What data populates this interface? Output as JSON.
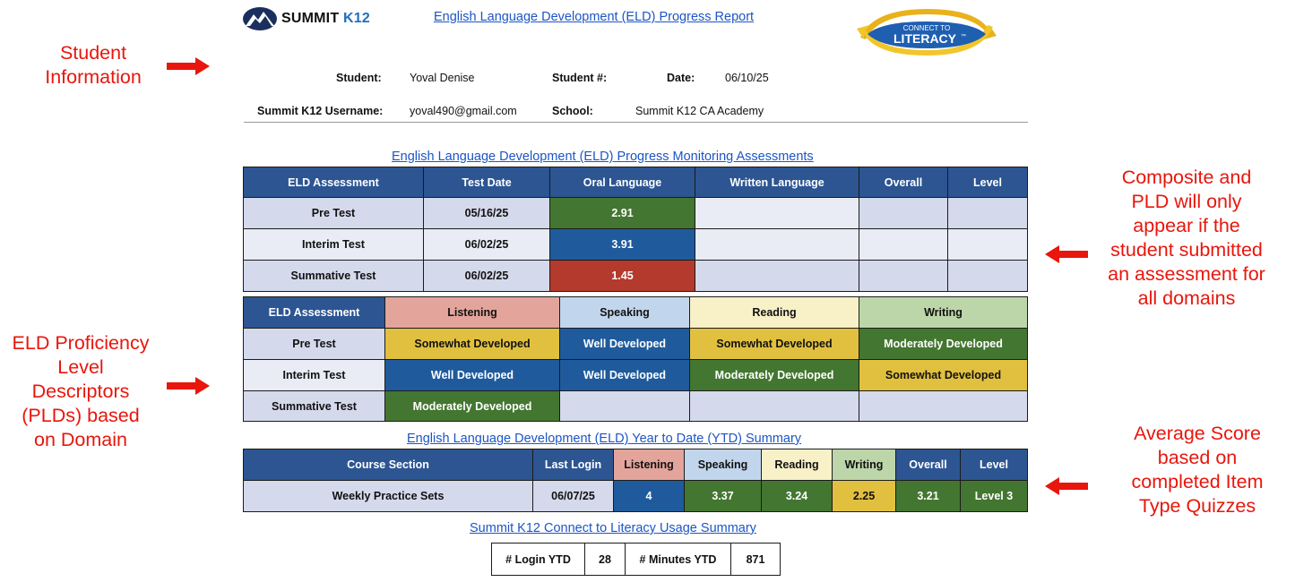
{
  "header": {
    "logo_text_main": "SUMMIT",
    "logo_text_accent": "K12",
    "report_title": "English Language Development (ELD) Progress Report",
    "ctl_logo_top": "CONNECT TO",
    "ctl_logo_main": "LITERACY",
    "ctl_logo_tm": "™"
  },
  "student_info": {
    "student_label": "Student:",
    "student_value": "Yoval Denise",
    "student_num_label": "Student #:",
    "date_label": "Date:",
    "date_value": "06/10/25",
    "username_label": "Summit K12 Username:",
    "username_value": "yoval490@gmail.com",
    "school_label": "School:",
    "school_value": "Summit K12 CA Academy"
  },
  "assessments": {
    "title": "English Language Development (ELD) Progress Monitoring Assessments",
    "headers": [
      "ELD Assessment",
      "Test Date",
      "Oral Language",
      "Written Language",
      "Overall",
      "Level"
    ],
    "rows": [
      {
        "name": "Pre Test",
        "date": "05/16/25",
        "oral": "2.91",
        "written": "",
        "overall": "",
        "level": ""
      },
      {
        "name": "Interim Test",
        "date": "06/02/25",
        "oral": "3.91",
        "written": "",
        "overall": "",
        "level": ""
      },
      {
        "name": "Summative Test",
        "date": "06/02/25",
        "oral": "1.45",
        "written": "",
        "overall": "",
        "level": ""
      }
    ]
  },
  "pld": {
    "headers": [
      "ELD Assessment",
      "Listening",
      "Speaking",
      "Reading",
      "Writing"
    ],
    "rows": [
      {
        "name": "Pre Test",
        "listening": "Somewhat Developed",
        "speaking": "Well Developed",
        "reading": "Somewhat Developed",
        "writing": "Moderately Developed"
      },
      {
        "name": "Interim Test",
        "listening": "Well Developed",
        "speaking": "Well Developed",
        "reading": "Moderately Developed",
        "writing": "Somewhat Developed"
      },
      {
        "name": "Summative Test",
        "listening": "Moderately Developed",
        "speaking": "",
        "reading": "",
        "writing": ""
      }
    ]
  },
  "ytd": {
    "title": "English Language Development (ELD) Year to Date (YTD) Summary",
    "headers": [
      "Course Section",
      "Last Login",
      "Listening",
      "Speaking",
      "Reading",
      "Writing",
      "Overall",
      "Level"
    ],
    "row": {
      "section": "Weekly Practice Sets",
      "last_login": "06/07/25",
      "listening": "4",
      "speaking": "3.37",
      "reading": "3.24",
      "writing": "2.25",
      "overall": "3.21",
      "level": "Level 3"
    }
  },
  "usage": {
    "title": "Summit K12 Connect to Literacy Usage Summary",
    "login_label": "# Login YTD",
    "login_value": "28",
    "minutes_label": "# Minutes YTD",
    "minutes_value": "871"
  },
  "annotations": {
    "student_info": [
      "Student",
      "Information"
    ],
    "pld": [
      "ELD Proficiency",
      "Level",
      "Descriptors",
      "(PLDs) based",
      "on Domain"
    ],
    "composite": [
      "Composite and",
      "PLD will only",
      "appear if the",
      "student submitted",
      "an assessment for",
      "all domains"
    ],
    "average": [
      "Average Score",
      "based on",
      "completed Item",
      "Type Quizzes"
    ]
  },
  "colors": {
    "header_blue": "#2c5592",
    "cell_green": "#437630",
    "cell_blue": "#1f5b9c",
    "cell_red": "#b33a2c",
    "cell_yellow": "#e1c03f",
    "annotation_red": "#e8160c",
    "link_blue": "#1c55c6"
  }
}
